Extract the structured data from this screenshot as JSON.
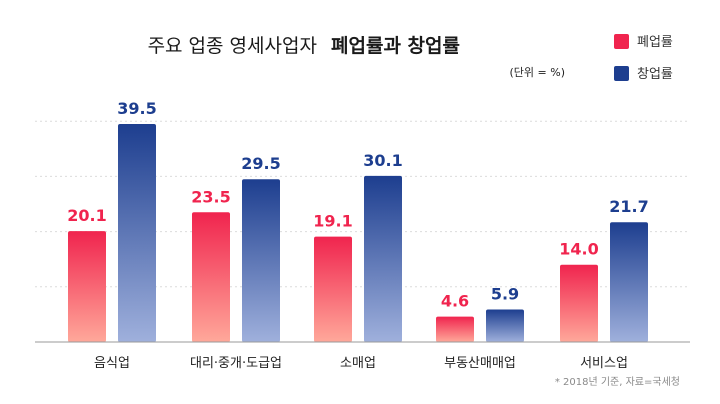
{
  "chart_data": {
    "type": "bar",
    "title": {
      "light": "주요 업종 영세사업자",
      "bold": "폐업률과 창업률"
    },
    "unit_note": "(단위 = %)",
    "source_note": "* 2018년 기준, 자료=국세청",
    "categories": [
      "음식업",
      "대리·중개·도급업",
      "소매업",
      "부동산매매업",
      "서비스업"
    ],
    "series": [
      {
        "name": "폐업률",
        "color": "#f0244e",
        "values": [
          20.1,
          23.5,
          19.1,
          4.6,
          14.0
        ],
        "labels": [
          "20.1",
          "23.5",
          "19.1",
          "4.6",
          "14.0"
        ]
      },
      {
        "name": "창업률",
        "color": "#1d3e8f",
        "values": [
          39.5,
          29.5,
          30.1,
          5.9,
          21.7
        ],
        "labels": [
          "39.5",
          "29.5",
          "30.1",
          "5.9",
          "21.7"
        ]
      }
    ],
    "ylim": [
      0,
      40
    ],
    "grid": true,
    "legend_position": "top-right"
  }
}
